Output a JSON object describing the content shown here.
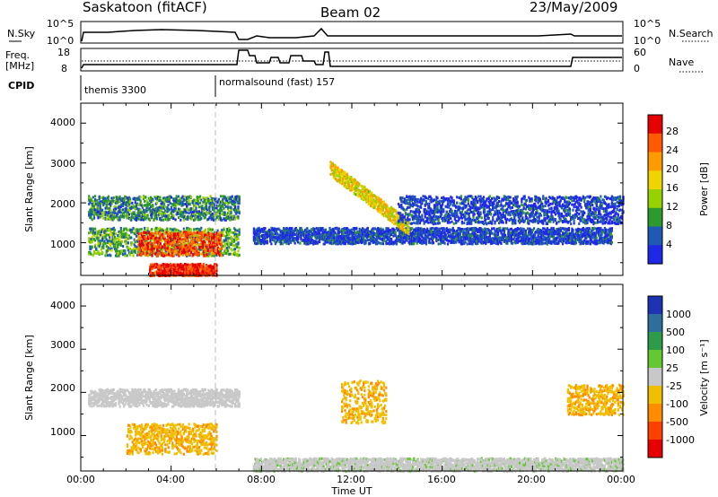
{
  "header": {
    "site": "Saskatoon (fitACF)",
    "beam": "Beam 02",
    "date": "23/May/2009"
  },
  "noise_panel": {
    "left_label": "N.Sky",
    "right_label": "N.Search",
    "left_ticks": [
      "10^5",
      "10^0"
    ],
    "right_ticks": [
      "10^5",
      "10^0"
    ]
  },
  "freq_panel": {
    "left_label_1": "Freq.",
    "left_label_2": "[MHz]",
    "right_label": "Nave",
    "left_ticks": [
      "18",
      "8"
    ],
    "right_ticks": [
      "60",
      "0"
    ]
  },
  "cpid": {
    "label": "CPID",
    "segments": [
      {
        "start_hour": 0,
        "text": "themis 3300"
      },
      {
        "start_hour": 6,
        "text": "normalsound (fast) 157"
      }
    ]
  },
  "x_axis": {
    "label": "Time UT",
    "ticks": [
      "00:00",
      "04:00",
      "08:00",
      "12:00",
      "16:00",
      "20:00",
      "00:00"
    ]
  },
  "power_panel": {
    "ylabel": "Slant Range [km]",
    "yticks": [
      "1000",
      "2000",
      "3000",
      "4000"
    ],
    "colorbar_label": "Power [dB]",
    "colorbar_ticks": [
      "28",
      "24",
      "20",
      "16",
      "12",
      "8",
      "4"
    ],
    "colors": [
      "#e60000",
      "#ff5a00",
      "#ff9a00",
      "#f0d400",
      "#96d200",
      "#2e9a2e",
      "#1e5ab4",
      "#1e28e6"
    ]
  },
  "velocity_panel": {
    "ylabel": "Slant Range [km]",
    "yticks": [
      "1000",
      "2000",
      "3000",
      "4000"
    ],
    "colorbar_label": "Velocity  [m s⁻¹]",
    "colorbar_ticks": [
      "1000",
      "500",
      "100",
      "25",
      "-25",
      "-100",
      "-500",
      "-1000"
    ],
    "colors": [
      "#1e32b4",
      "#2e6e9e",
      "#2e9a4a",
      "#64c832",
      "#c8c8c8",
      "#f0c000",
      "#ff8c00",
      "#ff4000",
      "#e60000"
    ]
  },
  "chart_data": {
    "type": "heatmap",
    "x_unit": "hour UT",
    "xlim": [
      0,
      24
    ],
    "ylim": [
      180,
      4500
    ],
    "y_unit": "km",
    "power_dB_range": [
      3,
      30
    ],
    "velocity_range": [
      -1000,
      1000
    ],
    "data_gap_hours": [
      7.0,
      7.6
    ],
    "power_features": [
      {
        "desc": "band",
        "t_start": 0.3,
        "t_end": 7.0,
        "range_km": [
          1600,
          2200
        ],
        "power_dB": 10
      },
      {
        "desc": "band",
        "t_start": 0.3,
        "t_end": 7.0,
        "range_km": [
          700,
          1400
        ],
        "power_dB": 12
      },
      {
        "desc": "strong",
        "t_start": 2.5,
        "t_end": 6.2,
        "range_km": [
          700,
          1300
        ],
        "power_dB": 26
      },
      {
        "desc": "strong",
        "t_start": 3.0,
        "t_end": 6.0,
        "range_km": [
          200,
          500
        ],
        "power_dB": 28
      },
      {
        "desc": "band",
        "t_start": 7.6,
        "t_end": 23.5,
        "range_km": [
          1000,
          1400
        ],
        "power_dB": 6
      },
      {
        "desc": "arc",
        "t_start": 11.0,
        "t_end": 14.5,
        "range_km": [
          1200,
          3000
        ],
        "power_dB": 18
      },
      {
        "desc": "band",
        "t_start": 14.0,
        "t_end": 24.0,
        "range_km": [
          1500,
          2200
        ],
        "power_dB": 6
      }
    ],
    "velocity_features": [
      {
        "t_start": 0.3,
        "t_end": 7.0,
        "range_km": [
          1700,
          2100
        ],
        "velocity": 0
      },
      {
        "t_start": 2.0,
        "t_end": 6.0,
        "range_km": [
          600,
          1300
        ],
        "velocity": -300
      },
      {
        "t_start": 11.5,
        "t_end": 13.5,
        "range_km": [
          1300,
          2300
        ],
        "velocity": -300
      },
      {
        "t_start": 7.6,
        "t_end": 24.0,
        "range_km": [
          200,
          500
        ],
        "velocity": 50
      },
      {
        "t_start": 21.5,
        "t_end": 24.0,
        "range_km": [
          1500,
          2200
        ],
        "velocity": -300
      }
    ]
  }
}
